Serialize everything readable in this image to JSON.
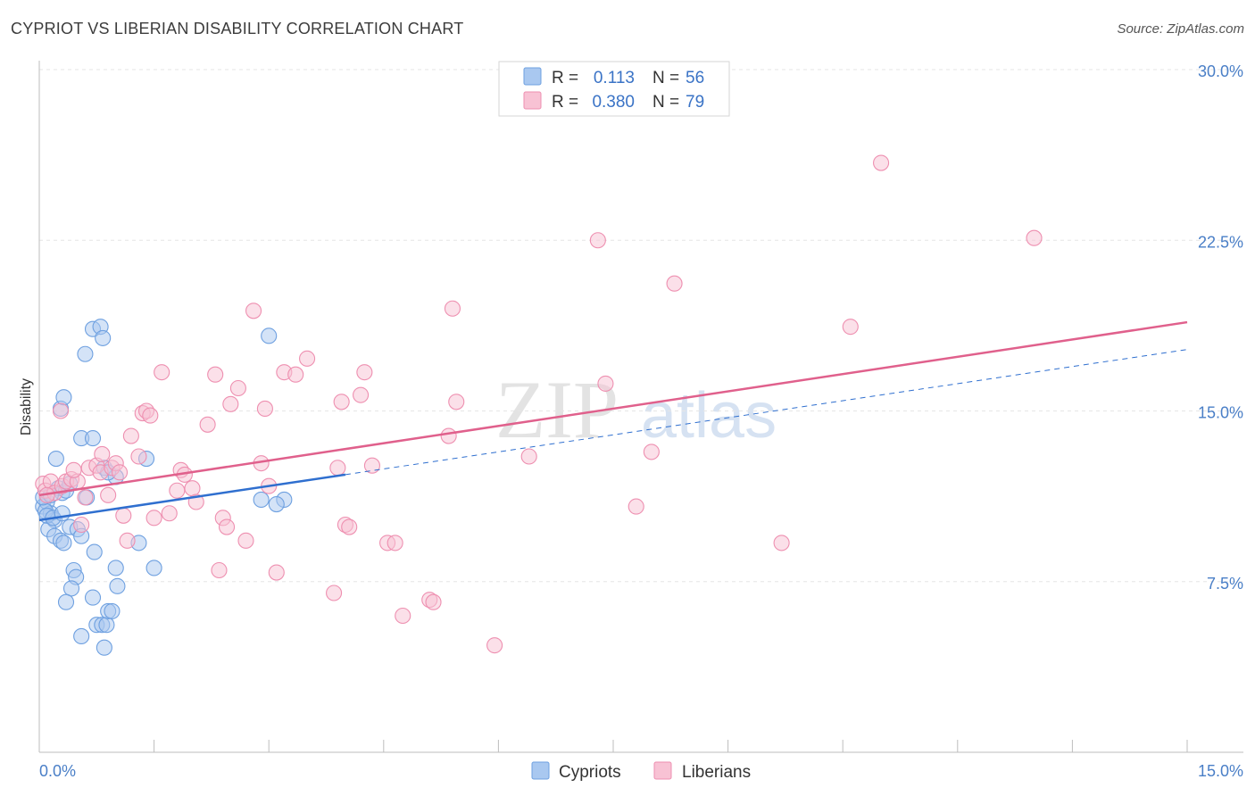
{
  "header": {
    "title": "CYPRIOT VS LIBERIAN DISABILITY CORRELATION CHART",
    "source": "Source: ZipAtlas.com"
  },
  "watermark": {
    "zip": "ZIP",
    "atlas": "atlas"
  },
  "legend": {
    "r_label": "R =",
    "n_label": "N =",
    "rows": [
      {
        "r": "0.113",
        "n": "56",
        "color": "#6ea0e0"
      },
      {
        "r": "0.380",
        "n": "79",
        "color": "#ee8fb0"
      }
    ]
  },
  "bottom_legend": [
    "Cypriots",
    "Liberians"
  ],
  "colors": {
    "cypriot_fill": "#a9c8f0",
    "cypriot_stroke": "#6ea0e0",
    "cypriot_line": "#2f6fcf",
    "liberian_fill": "#f8c2d4",
    "liberian_stroke": "#ee8fb0",
    "liberian_line": "#e0608c",
    "axis_label": "#4a7fc7"
  },
  "chart_data": {
    "type": "scatter",
    "title": "CYPRIOT VS LIBERIAN DISABILITY CORRELATION CHART",
    "xlabel": "",
    "ylabel": "Disability",
    "xlim": [
      0,
      15
    ],
    "ylim": [
      0,
      31.5
    ],
    "x_tick_labels": [
      "0.0%",
      "15.0%"
    ],
    "y_ticks": [
      7.5,
      15.0,
      22.5,
      30.0
    ],
    "y_tick_labels": [
      "7.5%",
      "15.0%",
      "22.5%",
      "30.0%"
    ],
    "grid": "horizontal dashed",
    "series": [
      {
        "name": "Cypriots",
        "R": 0.113,
        "N": 56,
        "trend": {
          "x0": 0.0,
          "y0": 10.2,
          "x1": 4.0,
          "y1": 12.2,
          "dash_to_x": 15.0,
          "dash_to_y": 17.7
        },
        "points": [
          [
            0.05,
            10.8
          ],
          [
            0.1,
            11.0
          ],
          [
            0.15,
            10.5
          ],
          [
            0.2,
            10.2
          ],
          [
            0.08,
            10.6
          ],
          [
            0.12,
            9.8
          ],
          [
            0.25,
            11.6
          ],
          [
            0.3,
            11.4
          ],
          [
            0.35,
            11.5
          ],
          [
            0.4,
            11.8
          ],
          [
            0.22,
            12.9
          ],
          [
            0.28,
            15.1
          ],
          [
            0.32,
            15.6
          ],
          [
            0.55,
            13.8
          ],
          [
            0.7,
            13.8
          ],
          [
            0.6,
            17.5
          ],
          [
            0.7,
            18.6
          ],
          [
            0.8,
            18.7
          ],
          [
            0.83,
            18.2
          ],
          [
            0.85,
            12.5
          ],
          [
            1.0,
            12.1
          ],
          [
            1.4,
            12.9
          ],
          [
            0.2,
            9.5
          ],
          [
            0.28,
            9.3
          ],
          [
            0.32,
            9.2
          ],
          [
            0.4,
            9.9
          ],
          [
            0.5,
            9.8
          ],
          [
            0.55,
            9.5
          ],
          [
            0.62,
            11.2
          ],
          [
            0.72,
            8.8
          ],
          [
            0.45,
            8.0
          ],
          [
            0.48,
            7.7
          ],
          [
            0.42,
            7.2
          ],
          [
            0.35,
            6.6
          ],
          [
            0.7,
            6.8
          ],
          [
            0.75,
            5.6
          ],
          [
            0.82,
            5.6
          ],
          [
            0.88,
            5.6
          ],
          [
            0.55,
            5.1
          ],
          [
            0.85,
            4.6
          ],
          [
            0.9,
            6.2
          ],
          [
            0.95,
            6.2
          ],
          [
            1.0,
            8.1
          ],
          [
            1.02,
            7.3
          ],
          [
            1.3,
            9.2
          ],
          [
            1.5,
            8.1
          ],
          [
            3.0,
            18.3
          ],
          [
            2.9,
            11.1
          ],
          [
            3.2,
            11.1
          ],
          [
            3.1,
            10.9
          ],
          [
            0.05,
            11.2
          ],
          [
            0.1,
            10.4
          ],
          [
            0.18,
            10.3
          ],
          [
            0.15,
            11.3
          ],
          [
            0.9,
            12.3
          ],
          [
            0.3,
            10.5
          ]
        ]
      },
      {
        "name": "Liberians",
        "R": 0.38,
        "N": 79,
        "trend": {
          "x0": 0.0,
          "y0": 11.3,
          "x1": 15.0,
          "y1": 18.9
        },
        "points": [
          [
            0.05,
            11.8
          ],
          [
            0.08,
            11.5
          ],
          [
            0.15,
            11.9
          ],
          [
            0.2,
            11.4
          ],
          [
            0.3,
            11.7
          ],
          [
            0.35,
            11.9
          ],
          [
            0.42,
            12.0
          ],
          [
            0.5,
            11.9
          ],
          [
            0.28,
            15.0
          ],
          [
            0.45,
            12.4
          ],
          [
            0.6,
            11.2
          ],
          [
            0.65,
            12.5
          ],
          [
            0.75,
            12.6
          ],
          [
            0.8,
            12.3
          ],
          [
            0.82,
            13.1
          ],
          [
            0.9,
            11.3
          ],
          [
            0.95,
            12.5
          ],
          [
            1.0,
            12.7
          ],
          [
            1.05,
            12.3
          ],
          [
            1.1,
            10.4
          ],
          [
            1.15,
            9.3
          ],
          [
            1.2,
            13.9
          ],
          [
            1.3,
            13.0
          ],
          [
            1.35,
            14.9
          ],
          [
            1.4,
            15.0
          ],
          [
            1.45,
            14.8
          ],
          [
            1.5,
            10.3
          ],
          [
            1.6,
            16.7
          ],
          [
            1.7,
            10.5
          ],
          [
            1.8,
            11.5
          ],
          [
            1.85,
            12.4
          ],
          [
            1.9,
            12.2
          ],
          [
            2.0,
            11.6
          ],
          [
            2.05,
            11.0
          ],
          [
            2.2,
            14.4
          ],
          [
            2.3,
            16.6
          ],
          [
            2.35,
            8.0
          ],
          [
            2.4,
            10.3
          ],
          [
            2.45,
            9.9
          ],
          [
            2.5,
            15.3
          ],
          [
            2.6,
            16.0
          ],
          [
            2.7,
            9.3
          ],
          [
            2.8,
            19.4
          ],
          [
            2.9,
            12.7
          ],
          [
            2.95,
            15.1
          ],
          [
            3.0,
            11.7
          ],
          [
            3.1,
            7.9
          ],
          [
            3.2,
            16.7
          ],
          [
            3.35,
            16.6
          ],
          [
            3.5,
            17.3
          ],
          [
            3.85,
            7.0
          ],
          [
            3.9,
            12.5
          ],
          [
            3.95,
            15.4
          ],
          [
            4.0,
            10.0
          ],
          [
            4.05,
            9.9
          ],
          [
            4.2,
            15.7
          ],
          [
            4.25,
            16.7
          ],
          [
            4.35,
            12.6
          ],
          [
            4.55,
            9.2
          ],
          [
            4.65,
            9.2
          ],
          [
            4.75,
            6.0
          ],
          [
            5.1,
            6.7
          ],
          [
            5.15,
            6.6
          ],
          [
            5.35,
            13.9
          ],
          [
            5.4,
            19.5
          ],
          [
            5.45,
            15.4
          ],
          [
            5.95,
            4.7
          ],
          [
            6.4,
            13.0
          ],
          [
            7.3,
            22.5
          ],
          [
            7.4,
            16.2
          ],
          [
            7.8,
            10.8
          ],
          [
            8.0,
            13.2
          ],
          [
            8.3,
            20.6
          ],
          [
            9.7,
            9.2
          ],
          [
            10.6,
            18.7
          ],
          [
            11.0,
            25.9
          ],
          [
            13.0,
            22.6
          ],
          [
            0.1,
            11.3
          ],
          [
            0.55,
            10.0
          ]
        ]
      }
    ]
  }
}
